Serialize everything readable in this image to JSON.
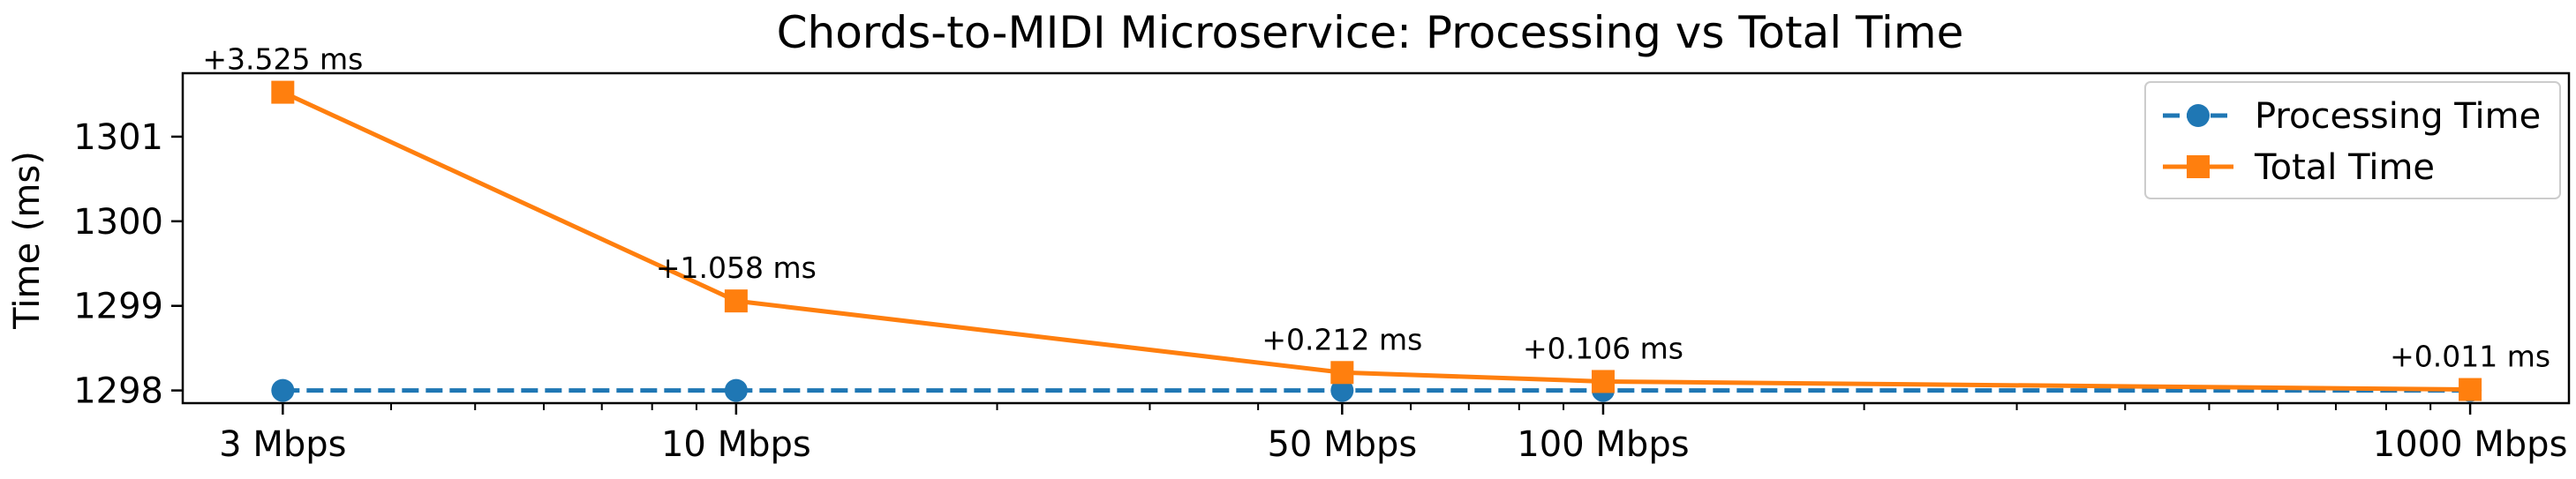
{
  "chart_data": {
    "type": "line",
    "title": "Chords-to-MIDI Microservice: Processing vs Total Time",
    "ylabel": "Time (ms)",
    "xlabel": "",
    "x_scale": "log",
    "x": [
      3,
      10,
      50,
      100,
      1000
    ],
    "x_tick_labels": [
      "3 Mbps",
      "10 Mbps",
      "50 Mbps",
      "100 Mbps",
      "1000 Mbps"
    ],
    "y_ticks": [
      1298,
      1299,
      1300,
      1301
    ],
    "xlim": [
      2.3,
      1300
    ],
    "ylim": [
      1297.85,
      1301.75
    ],
    "series": [
      {
        "name": "Processing Time",
        "values": [
          1298.0,
          1298.0,
          1298.0,
          1298.0,
          1298.0
        ],
        "color": "#1f77b4",
        "marker": "circle",
        "line_style": "dashed"
      },
      {
        "name": "Total Time",
        "values": [
          1301.525,
          1299.058,
          1298.212,
          1298.106,
          1298.011
        ],
        "color": "#ff7f0e",
        "marker": "square",
        "line_style": "solid"
      }
    ],
    "annotations": [
      "+3.525 ms",
      "+1.058 ms",
      "+0.212 ms",
      "+0.106 ms",
      "+0.011 ms"
    ],
    "legend_position": "upper-right",
    "grid": false
  }
}
